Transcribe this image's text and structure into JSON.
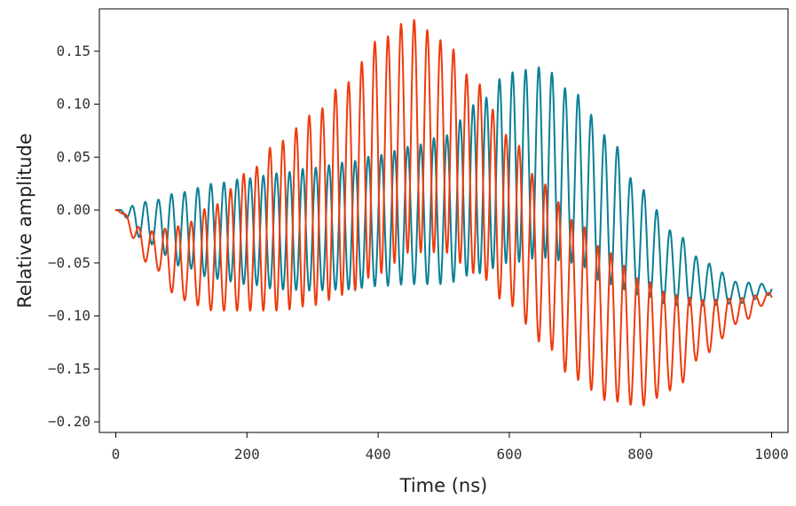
{
  "chart_data": {
    "type": "line",
    "title": "",
    "xlabel": "Time (ns)",
    "ylabel": "Relative amplitude",
    "xlim": [
      -25,
      1025
    ],
    "ylim": [
      -0.21,
      0.19
    ],
    "xticks": [
      0,
      200,
      400,
      600,
      800,
      1000
    ],
    "xtick_labels": [
      "0",
      "200",
      "400",
      "600",
      "800",
      "1000"
    ],
    "yticks": [
      0.15,
      0.1,
      0.05,
      0.0,
      -0.05,
      -0.1,
      -0.15,
      -0.2
    ],
    "ytick_labels": [
      "0.15",
      "0.10",
      "0.05",
      "0.00",
      "−0.05",
      "−0.10",
      "−0.15",
      "−0.20"
    ],
    "grid": false,
    "legend": "none",
    "series": [
      {
        "color": "#0a7f96",
        "description": "fast oscillation (period ~20 ns) riding on a slow envelope; oscillation amplitude grows from 0 near t=0 to ~0.09 around t=600 ns then shrinks",
        "x": [
          0,
          50,
          100,
          150,
          200,
          250,
          300,
          350,
          400,
          450,
          500,
          550,
          600,
          650,
          700,
          750,
          800,
          850,
          900,
          950,
          1000
        ],
        "envelope_center": [
          0.0,
          -0.012,
          -0.018,
          -0.02,
          -0.02,
          -0.02,
          -0.018,
          -0.015,
          -0.01,
          -0.005,
          0.0,
          0.02,
          0.04,
          0.045,
          0.03,
          0.0,
          -0.03,
          -0.055,
          -0.07,
          -0.078,
          -0.075
        ],
        "oscillation_amplitude": [
          0.0,
          0.02,
          0.035,
          0.045,
          0.05,
          0.055,
          0.058,
          0.06,
          0.062,
          0.065,
          0.07,
          0.08,
          0.09,
          0.09,
          0.08,
          0.07,
          0.05,
          0.035,
          0.02,
          0.01,
          0.005
        ]
      },
      {
        "color": "#ee3b0d",
        "description": "fast oscillation (period ~20 ns) riding on a slow envelope; oscillation amplitude peaks ~0.11 near t=430 ns; extremes ~+0.17 at 430 ns and ~-0.19 at 830 ns",
        "x": [
          0,
          50,
          100,
          150,
          200,
          250,
          300,
          350,
          400,
          450,
          500,
          550,
          600,
          650,
          700,
          750,
          800,
          850,
          900,
          950,
          1000
        ],
        "envelope_center": [
          0.0,
          -0.035,
          -0.05,
          -0.045,
          -0.03,
          -0.015,
          0.0,
          0.02,
          0.05,
          0.07,
          0.06,
          0.03,
          -0.01,
          -0.05,
          -0.085,
          -0.11,
          -0.125,
          -0.125,
          -0.11,
          -0.095,
          -0.082
        ],
        "oscillation_amplitude": [
          0.0,
          0.015,
          0.035,
          0.05,
          0.065,
          0.08,
          0.09,
          0.1,
          0.11,
          0.11,
          0.1,
          0.09,
          0.08,
          0.075,
          0.075,
          0.07,
          0.06,
          0.045,
          0.025,
          0.012,
          0.004
        ]
      }
    ]
  }
}
